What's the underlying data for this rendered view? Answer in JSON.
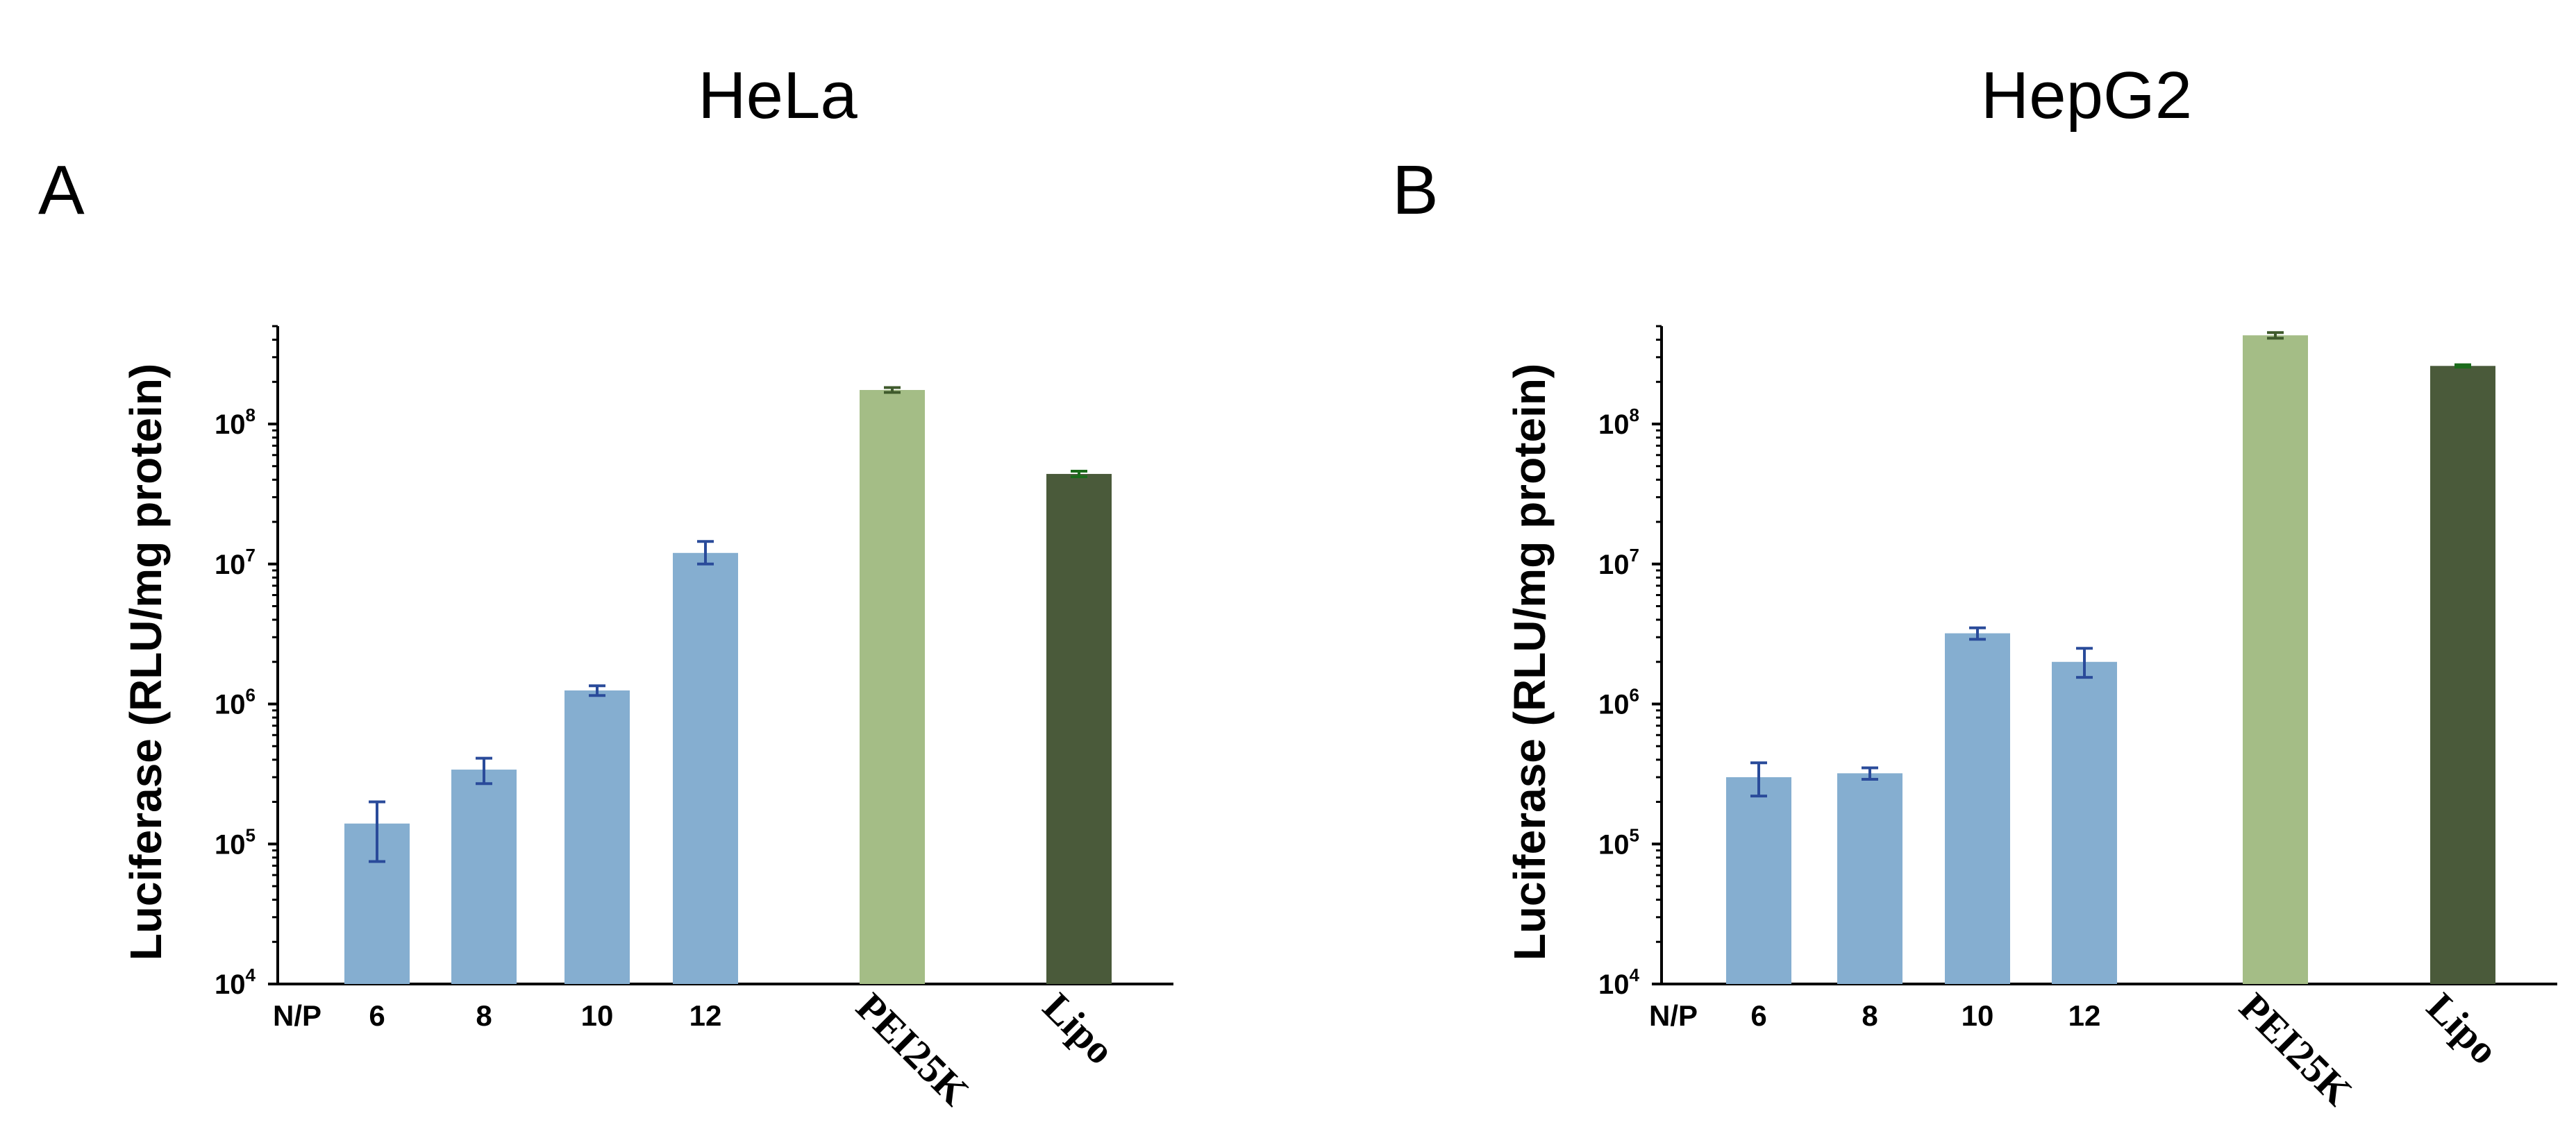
{
  "figure": {
    "xlabel_prefix": "N/P",
    "colors": {
      "np_bar": "#85aed0",
      "np_err": "#2a4b9a",
      "pei_bar": "#a4bd86",
      "pei_err": "#3f5a2c",
      "lipo_bar": "#4a5a3a",
      "lipo_err": "#1b6b1b",
      "axis": "#000000"
    }
  },
  "chart_data": [
    {
      "panel": "A",
      "title": "HeLa",
      "type": "bar",
      "yscale": "log",
      "ylabel": "Luciferase (RLU/mg protein)",
      "ylim": [
        10000,
        500000000
      ],
      "yticks": [
        {
          "value": 10000,
          "base": "10",
          "exp": "4"
        },
        {
          "value": 100000,
          "base": "10",
          "exp": "5"
        },
        {
          "value": 1000000,
          "base": "10",
          "exp": "6"
        },
        {
          "value": 10000000,
          "base": "10",
          "exp": "7"
        },
        {
          "value": 100000000,
          "base": "10",
          "exp": "8"
        }
      ],
      "categories": [
        "6",
        "8",
        "10",
        "12",
        "PEI25K",
        "Lipo"
      ],
      "values": [
        140000,
        340000,
        1250000,
        12000000,
        175000000,
        44000000
      ],
      "err_low": [
        75000,
        270000,
        1150000,
        10000000,
        168000000,
        42000000
      ],
      "err_high": [
        200000,
        410000,
        1350000,
        14500000,
        182000000,
        46000000
      ]
    },
    {
      "panel": "B",
      "title": "HepG2",
      "type": "bar",
      "yscale": "log",
      "ylabel": "Luciferase (RLU/mg protein)",
      "ylim": [
        10000,
        500000000
      ],
      "yticks": [
        {
          "value": 10000,
          "base": "10",
          "exp": "4"
        },
        {
          "value": 100000,
          "base": "10",
          "exp": "5"
        },
        {
          "value": 1000000,
          "base": "10",
          "exp": "6"
        },
        {
          "value": 10000000,
          "base": "10",
          "exp": "7"
        },
        {
          "value": 100000000,
          "base": "10",
          "exp": "8"
        }
      ],
      "categories": [
        "6",
        "8",
        "10",
        "12",
        "PEI25K",
        "Lipo"
      ],
      "values": [
        300000,
        320000,
        3200000,
        2000000,
        430000000,
        260000000
      ],
      "err_low": [
        220000,
        290000,
        2900000,
        1550000,
        410000000,
        255000000
      ],
      "err_high": [
        380000,
        350000,
        3500000,
        2500000,
        450000000,
        265000000
      ]
    }
  ]
}
